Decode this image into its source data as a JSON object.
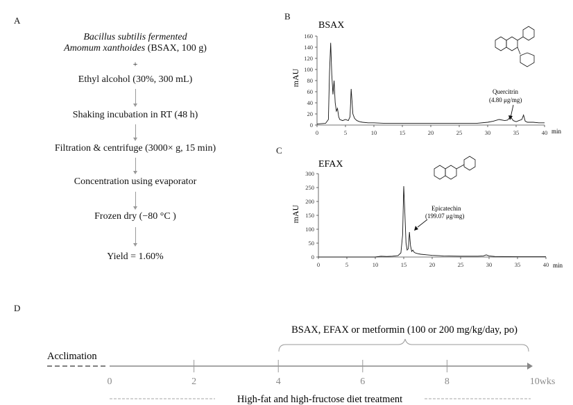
{
  "panels": {
    "a": "A",
    "b": "B",
    "c": "C",
    "d": "D"
  },
  "flowchart": {
    "start_line1": "Bacillus subtilis fermented",
    "start_line2_italic": "Amomum xanthoides",
    "start_line2_rest": " (BSAX, 100 g)",
    "plus": "+",
    "steps": [
      "Ethyl alcohol (30%, 300 mL)",
      "Shaking incubation in RT (48 h)",
      "Filtration & centrifuge (3000× g, 15 min)",
      "Concentration using evaporator",
      "Frozen dry (−80 °C )",
      "Yield = 1.60%"
    ]
  },
  "timeline": {
    "acclimation": "Acclimation",
    "bracket_label": "BSAX, EFAX or metformin (100 or 200 mg/kg/day,  po)",
    "ticks": [
      "0",
      "2",
      "4",
      "6",
      "8",
      "10wks"
    ],
    "diet_label": "High-fat and high-fructose diet treatment"
  },
  "chart_data": [
    {
      "type": "line",
      "title": "BSAX",
      "xlabel": "min",
      "ylabel": "mAU",
      "xlim": [
        0,
        40
      ],
      "ylim": [
        0,
        160
      ],
      "xticks": [
        0,
        5,
        10,
        15,
        20,
        25,
        30,
        35,
        40
      ],
      "yticks": [
        0,
        20,
        40,
        60,
        80,
        100,
        120,
        140,
        160
      ],
      "x": [
        0,
        1.5,
        2.0,
        2.2,
        2.4,
        2.6,
        2.8,
        3.0,
        3.2,
        3.4,
        3.6,
        3.8,
        4.0,
        4.5,
        5.0,
        5.5,
        5.8,
        6.0,
        6.3,
        6.6,
        7.0,
        7.5,
        8,
        9,
        10,
        12,
        15,
        20,
        25,
        28,
        30,
        31,
        32,
        33,
        33.5,
        34,
        34.5,
        35,
        35.5,
        36,
        36.3,
        36.6,
        37,
        38,
        39,
        40
      ],
      "y": [
        2,
        3,
        10,
        95,
        148,
        90,
        55,
        80,
        40,
        25,
        30,
        15,
        10,
        8,
        10,
        8,
        15,
        65,
        20,
        12,
        8,
        6,
        5,
        4,
        4,
        3,
        3,
        3,
        3,
        3,
        5,
        7,
        10,
        8,
        9,
        15,
        8,
        6,
        8,
        10,
        18,
        7,
        5,
        5,
        4,
        4
      ],
      "compound_label": "Quercitrin",
      "compound_value": "(4.80 μg/mg)"
    },
    {
      "type": "line",
      "title": "EFAX",
      "xlabel": "min",
      "ylabel": "mAU",
      "xlim": [
        0,
        40
      ],
      "ylim": [
        0,
        300
      ],
      "xticks": [
        0,
        5,
        10,
        15,
        20,
        25,
        30,
        35,
        40
      ],
      "yticks": [
        0,
        50,
        100,
        150,
        200,
        250,
        300
      ],
      "x": [
        0,
        5,
        10,
        11,
        12,
        13,
        14,
        14.5,
        14.8,
        15.0,
        15.2,
        15.4,
        15.6,
        15.8,
        16.0,
        16.2,
        16.4,
        16.6,
        16.8,
        17,
        17.5,
        18,
        19,
        20,
        22,
        25,
        28,
        29,
        29.5,
        30,
        31,
        35,
        40
      ],
      "y": [
        0,
        0,
        0,
        3,
        2,
        3,
        5,
        15,
        80,
        255,
        160,
        50,
        25,
        30,
        90,
        40,
        20,
        25,
        18,
        15,
        12,
        10,
        8,
        6,
        4,
        3,
        3,
        4,
        8,
        4,
        2,
        1,
        1
      ],
      "compound_label": "Epicatechin",
      "compound_value": "(199.07 μg/mg)"
    }
  ]
}
